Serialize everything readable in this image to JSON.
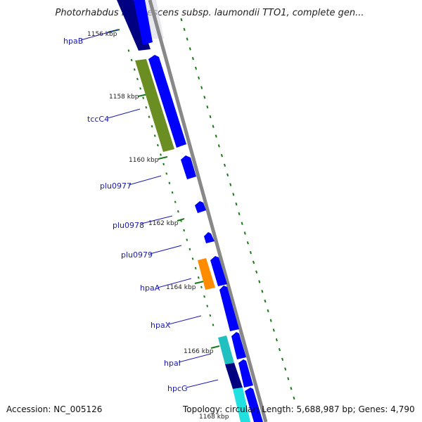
{
  "title": "Photorhabdus luminescens subsp. laumondii TTO1, complete gen...",
  "footer": {
    "accession": "Accession: NC_005126",
    "topology": "Topology: circular; Length: 5,688,987 bp; Genes: 4,790"
  },
  "kbp_labels": [
    "1156 kbp",
    "1158 kbp",
    "1160 kbp",
    "1162 kbp",
    "1164 kbp",
    "1166 kbp",
    "1168 kbp"
  ],
  "genes": [
    {
      "name": "hpaB",
      "color": "#000080"
    },
    {
      "name": "tccC4",
      "color": "#6b8e23"
    },
    {
      "name": "plu0977",
      "color": "#0000ff"
    },
    {
      "name": "plu0978",
      "color": "#0000ff"
    },
    {
      "name": "plu0979",
      "color": "#0000ff"
    },
    {
      "name": "hpaA",
      "color": "#ff8c00"
    },
    {
      "name": "hpaX",
      "color": "#0000ff"
    },
    {
      "name": "hpaI",
      "color": "#20c0c0"
    },
    {
      "name": "hpcG",
      "color": "#000080"
    }
  ],
  "colors": {
    "cds_forward": "#0000ff",
    "backbone": "#888888",
    "ticks": "#1a7a1a",
    "label": "#1a1ab0"
  }
}
